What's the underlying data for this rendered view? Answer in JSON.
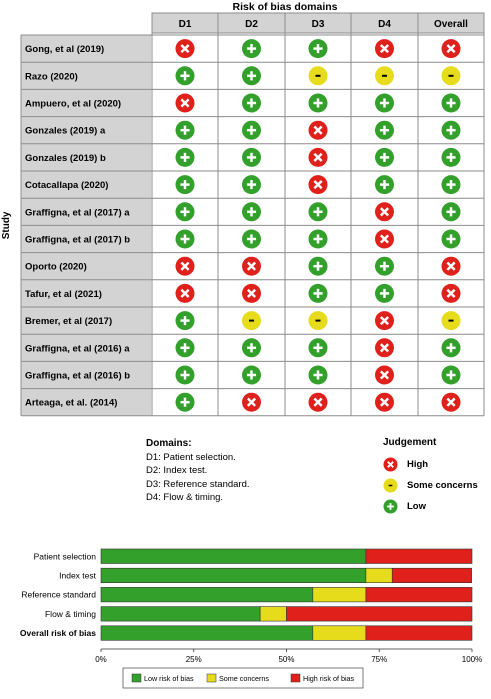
{
  "chart_data": [
    {
      "type": "table",
      "title": "Risk of bias domains",
      "row_axis_label": "Study",
      "columns": [
        "D1",
        "D2",
        "D3",
        "D4",
        "Overall"
      ],
      "rows": [
        {
          "study": "Gong, et al (2019)",
          "ratings": [
            "high",
            "low",
            "low",
            "high",
            "high"
          ]
        },
        {
          "study": "Razo (2020)",
          "ratings": [
            "low",
            "low",
            "some",
            "some",
            "some"
          ]
        },
        {
          "study": "Ampuero, et al (2020)",
          "ratings": [
            "high",
            "low",
            "low",
            "low",
            "low"
          ]
        },
        {
          "study": "Gonzales (2019) a",
          "ratings": [
            "low",
            "low",
            "high",
            "low",
            "low"
          ]
        },
        {
          "study": "Gonzales (2019) b",
          "ratings": [
            "low",
            "low",
            "high",
            "low",
            "low"
          ]
        },
        {
          "study": "Cotacallapa (2020)",
          "ratings": [
            "low",
            "low",
            "high",
            "low",
            "low"
          ]
        },
        {
          "study": "Graffigna, et al (2017) a",
          "ratings": [
            "low",
            "low",
            "low",
            "high",
            "low"
          ]
        },
        {
          "study": "Graffigna, et al (2017) b",
          "ratings": [
            "low",
            "low",
            "low",
            "high",
            "low"
          ]
        },
        {
          "study": "Oporto (2020)",
          "ratings": [
            "high",
            "high",
            "low",
            "low",
            "high"
          ]
        },
        {
          "study": "Tafur, et al (2021)",
          "ratings": [
            "high",
            "high",
            "low",
            "low",
            "high"
          ]
        },
        {
          "study": "Bremer, et al (2017)",
          "ratings": [
            "low",
            "some",
            "some",
            "high",
            "some"
          ]
        },
        {
          "study": "Graffigna, et al (2016) a",
          "ratings": [
            "low",
            "low",
            "low",
            "high",
            "low"
          ]
        },
        {
          "study": "Graffigna, et al (2016) b",
          "ratings": [
            "low",
            "low",
            "low",
            "high",
            "low"
          ]
        },
        {
          "study": "Arteaga, et al. (2014)",
          "ratings": [
            "low",
            "high",
            "high",
            "high",
            "high"
          ]
        }
      ],
      "symbols": {
        "high": "X",
        "some": "-",
        "low": "+"
      },
      "colors": {
        "high": "#e0201b",
        "some": "#e6dc1c",
        "low": "#33a02c"
      }
    },
    {
      "type": "bar",
      "stacked": true,
      "orientation": "horizontal",
      "categories": [
        "Patient selection",
        "Index test",
        "Reference standard",
        "Flow & timing",
        "Overall risk of bias"
      ],
      "series": [
        {
          "name": "Low risk of bias",
          "color": "#33a02c",
          "values": [
            71.4,
            71.4,
            57.1,
            42.9,
            57.1
          ]
        },
        {
          "name": "Some concerns",
          "color": "#e6dc1c",
          "values": [
            0,
            7.1,
            14.3,
            7.1,
            14.3
          ]
        },
        {
          "name": "High risk of bias",
          "color": "#e0201b",
          "values": [
            28.6,
            21.4,
            28.6,
            50.0,
            28.6
          ]
        }
      ],
      "x_ticks": [
        "0%",
        "25%",
        "50%",
        "75%",
        "100%"
      ],
      "xlim": [
        0,
        100
      ],
      "legend_position": "bottom"
    }
  ],
  "legend": {
    "domains_title": "Domains:",
    "domains": [
      "D1: Patient selection.",
      "D2: Index test.",
      "D3: Reference standard.",
      "D4: Flow & timing."
    ],
    "judgement_title": "Judgement",
    "judgement_items": [
      {
        "key": "high",
        "label": "High"
      },
      {
        "key": "some",
        "label": "Some concerns"
      },
      {
        "key": "low",
        "label": "Low"
      }
    ]
  }
}
